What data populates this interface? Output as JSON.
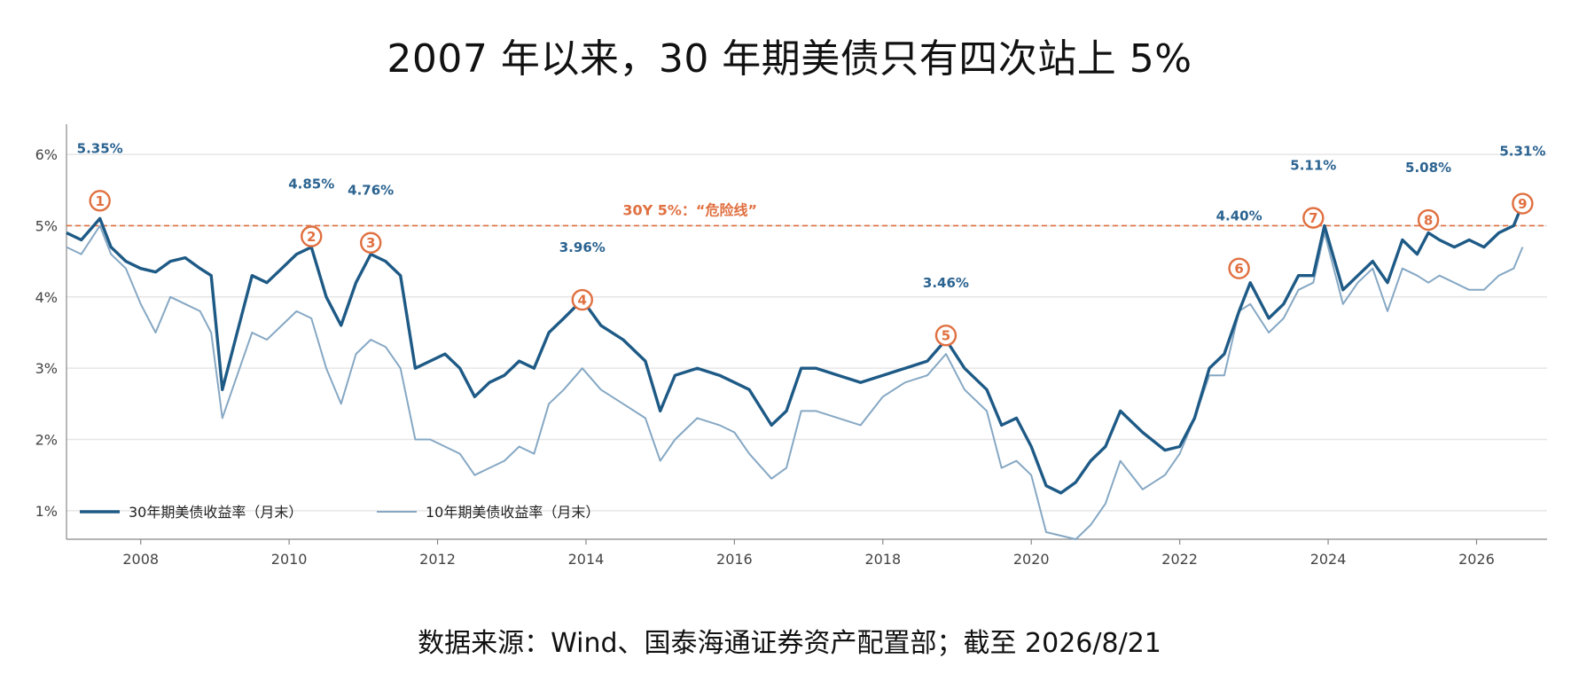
{
  "title": "2007 年以来，30 年期美债只有四次站上 5%",
  "source": "数据来源：Wind、国泰海通证券资产配置部；截至 2026/8/21",
  "chart_data": {
    "type": "line",
    "y_tick_labels": [
      "1%",
      "2%",
      "3%",
      "4%",
      "5%",
      "6%"
    ],
    "x_tick_labels": [
      "2008",
      "2010",
      "2012",
      "2014",
      "2016",
      "2018",
      "2020",
      "2022",
      "2024",
      "2026"
    ],
    "x_tick_values": [
      2008,
      2010,
      2012,
      2014,
      2016,
      2018,
      2020,
      2022,
      2024,
      2026
    ],
    "ylim": [
      0.6,
      6.3
    ],
    "xlim": [
      2007.0,
      2026.95
    ],
    "grid": true,
    "legend_position": "bottom-left",
    "threshold": {
      "value": 5.0,
      "label": "30Y 5%：“危险线”",
      "color": "#e07040"
    },
    "colors": {
      "series_30y": "#1e5a86",
      "series_10y": "#86a8c4",
      "marker": "#e07040",
      "peak_label": "#2b6390",
      "grid": "#e6e6e6"
    },
    "series": [
      {
        "name": "30年期美债收益率（月末）",
        "x": [
          2007.0,
          2007.2,
          2007.45,
          2007.6,
          2007.8,
          2008.0,
          2008.2,
          2008.4,
          2008.6,
          2008.8,
          2008.95,
          2009.1,
          2009.3,
          2009.5,
          2009.7,
          2009.9,
          2010.1,
          2010.3,
          2010.5,
          2010.7,
          2010.9,
          2011.1,
          2011.3,
          2011.5,
          2011.7,
          2011.9,
          2012.1,
          2012.3,
          2012.5,
          2012.7,
          2012.9,
          2013.1,
          2013.3,
          2013.5,
          2013.7,
          2013.95,
          2014.2,
          2014.5,
          2014.8,
          2015.0,
          2015.2,
          2015.5,
          2015.8,
          2016.0,
          2016.2,
          2016.5,
          2016.7,
          2016.9,
          2017.1,
          2017.4,
          2017.7,
          2018.0,
          2018.3,
          2018.6,
          2018.85,
          2019.1,
          2019.4,
          2019.6,
          2019.8,
          2020.0,
          2020.2,
          2020.4,
          2020.6,
          2020.8,
          2021.0,
          2021.2,
          2021.5,
          2021.8,
          2022.0,
          2022.2,
          2022.4,
          2022.6,
          2022.8,
          2022.95,
          2023.2,
          2023.4,
          2023.6,
          2023.8,
          2023.95,
          2024.2,
          2024.4,
          2024.6,
          2024.8,
          2025.0,
          2025.2,
          2025.35,
          2025.5,
          2025.7,
          2025.9,
          2026.1,
          2026.3,
          2026.5,
          2026.62
        ],
        "values": [
          4.9,
          4.8,
          5.1,
          4.7,
          4.5,
          4.4,
          4.35,
          4.5,
          4.55,
          4.4,
          4.3,
          2.7,
          3.5,
          4.3,
          4.2,
          4.4,
          4.6,
          4.7,
          4.0,
          3.6,
          4.2,
          4.6,
          4.5,
          4.3,
          3.0,
          3.1,
          3.2,
          3.0,
          2.6,
          2.8,
          2.9,
          3.1,
          3.0,
          3.5,
          3.7,
          3.96,
          3.6,
          3.4,
          3.1,
          2.4,
          2.9,
          3.0,
          2.9,
          2.8,
          2.7,
          2.2,
          2.4,
          3.0,
          3.0,
          2.9,
          2.8,
          2.9,
          3.0,
          3.1,
          3.4,
          3.0,
          2.7,
          2.2,
          2.3,
          1.9,
          1.35,
          1.25,
          1.4,
          1.7,
          1.9,
          2.4,
          2.1,
          1.85,
          1.9,
          2.3,
          3.0,
          3.2,
          3.8,
          4.2,
          3.7,
          3.9,
          4.3,
          4.3,
          5.0,
          4.1,
          4.3,
          4.5,
          4.2,
          4.8,
          4.6,
          4.9,
          4.8,
          4.7,
          4.8,
          4.7,
          4.9,
          5.0,
          5.31
        ]
      },
      {
        "name": "10年期美债收益率（月末）",
        "x": [
          2007.0,
          2007.2,
          2007.45,
          2007.6,
          2007.8,
          2008.0,
          2008.2,
          2008.4,
          2008.6,
          2008.8,
          2008.95,
          2009.1,
          2009.3,
          2009.5,
          2009.7,
          2009.9,
          2010.1,
          2010.3,
          2010.5,
          2010.7,
          2010.9,
          2011.1,
          2011.3,
          2011.5,
          2011.7,
          2011.9,
          2012.1,
          2012.3,
          2012.5,
          2012.7,
          2012.9,
          2013.1,
          2013.3,
          2013.5,
          2013.7,
          2013.95,
          2014.2,
          2014.5,
          2014.8,
          2015.0,
          2015.2,
          2015.5,
          2015.8,
          2016.0,
          2016.2,
          2016.5,
          2016.7,
          2016.9,
          2017.1,
          2017.4,
          2017.7,
          2018.0,
          2018.3,
          2018.6,
          2018.85,
          2019.1,
          2019.4,
          2019.6,
          2019.8,
          2020.0,
          2020.2,
          2020.4,
          2020.6,
          2020.8,
          2021.0,
          2021.2,
          2021.5,
          2021.8,
          2022.0,
          2022.2,
          2022.4,
          2022.6,
          2022.8,
          2022.95,
          2023.2,
          2023.4,
          2023.6,
          2023.8,
          2023.95,
          2024.2,
          2024.4,
          2024.6,
          2024.8,
          2025.0,
          2025.2,
          2025.35,
          2025.5,
          2025.7,
          2025.9,
          2026.1,
          2026.3,
          2026.5,
          2026.62
        ],
        "values": [
          4.7,
          4.6,
          5.0,
          4.6,
          4.4,
          3.9,
          3.5,
          4.0,
          3.9,
          3.8,
          3.5,
          2.3,
          2.9,
          3.5,
          3.4,
          3.6,
          3.8,
          3.7,
          3.0,
          2.5,
          3.2,
          3.4,
          3.3,
          3.0,
          2.0,
          2.0,
          1.9,
          1.8,
          1.5,
          1.6,
          1.7,
          1.9,
          1.8,
          2.5,
          2.7,
          3.0,
          2.7,
          2.5,
          2.3,
          1.7,
          2.0,
          2.3,
          2.2,
          2.1,
          1.8,
          1.45,
          1.6,
          2.4,
          2.4,
          2.3,
          2.2,
          2.6,
          2.8,
          2.9,
          3.2,
          2.7,
          2.4,
          1.6,
          1.7,
          1.5,
          0.7,
          0.65,
          0.6,
          0.8,
          1.1,
          1.7,
          1.3,
          1.5,
          1.8,
          2.3,
          2.9,
          2.9,
          3.8,
          3.9,
          3.5,
          3.7,
          4.1,
          4.2,
          4.9,
          3.9,
          4.2,
          4.4,
          3.8,
          4.4,
          4.3,
          4.2,
          4.3,
          4.2,
          4.1,
          4.1,
          4.3,
          4.4,
          4.7
        ]
      }
    ],
    "markers": [
      {
        "n": "1",
        "x": 2007.45,
        "y": 5.35,
        "label": "5.35%"
      },
      {
        "n": "2",
        "x": 2010.3,
        "y": 4.85,
        "label": "4.85%"
      },
      {
        "n": "3",
        "x": 2011.1,
        "y": 4.76,
        "label": "4.76%"
      },
      {
        "n": "4",
        "x": 2013.95,
        "y": 3.96,
        "label": "3.96%"
      },
      {
        "n": "5",
        "x": 2018.85,
        "y": 3.46,
        "label": "3.46%"
      },
      {
        "n": "6",
        "x": 2022.8,
        "y": 4.4,
        "label": "4.40%"
      },
      {
        "n": "7",
        "x": 2023.8,
        "y": 5.11,
        "label": "5.11%"
      },
      {
        "n": "8",
        "x": 2025.35,
        "y": 5.08,
        "label": "5.08%"
      },
      {
        "n": "9",
        "x": 2026.62,
        "y": 5.31,
        "label": "5.31%"
      }
    ]
  }
}
